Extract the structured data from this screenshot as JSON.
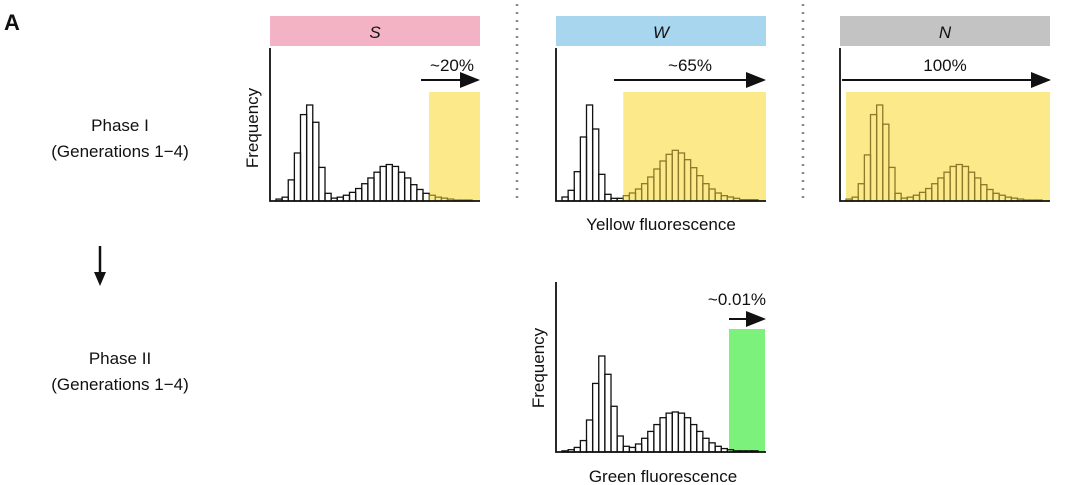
{
  "panel_label": "A",
  "phase1": {
    "title": "Phase I",
    "subtitle": "(Generations 1−4)"
  },
  "phase2": {
    "title": "Phase II",
    "subtitle": "(Generations 1−4)"
  },
  "ylabel": "Frequency",
  "yellow_xlabel": "Yellow fluorescence",
  "green_xlabel": "Green fluorescence",
  "colors": {
    "S": "#f4b3c4",
    "W": "#a9d6ef",
    "N": "#c3c3c3",
    "gate_yellow": "#fbe98a",
    "gate_green": "#7cf27c",
    "bar_in_gate": "#8a7a2a"
  },
  "panels": [
    {
      "id": "S",
      "header": "S",
      "gate_label": "~20%",
      "gate_fraction_label": "~20%",
      "gate_color": "gate_yellow"
    },
    {
      "id": "W",
      "header": "W",
      "gate_label": "~65%",
      "gate_color": "gate_yellow"
    },
    {
      "id": "N",
      "header": "N",
      "gate_label": "100%",
      "gate_color": "gate_yellow"
    },
    {
      "id": "G",
      "header": "",
      "gate_label": "~0.01%",
      "gate_color": "gate_green"
    }
  ],
  "chart_data": [
    {
      "type": "bar",
      "title": "S",
      "ylabel": "Frequency",
      "annotation": "~20%",
      "gate_start_bin": 25,
      "values": [
        2,
        4,
        22,
        50,
        90,
        100,
        82,
        35,
        8,
        3,
        4,
        6,
        9,
        13,
        18,
        24,
        30,
        36,
        38,
        36,
        30,
        24,
        17,
        12,
        8,
        6,
        4,
        3,
        2,
        1,
        1,
        1
      ]
    },
    {
      "type": "bar",
      "title": "W",
      "annotation": "~65%",
      "gate_start_bin": 10,
      "values": [
        3,
        8,
        22,
        48,
        72,
        54,
        20,
        5,
        2,
        2,
        4,
        6,
        9,
        13,
        18,
        24,
        30,
        35,
        38,
        36,
        31,
        25,
        19,
        13,
        9,
        6,
        4,
        3,
        2,
        1,
        1,
        1
      ]
    },
    {
      "type": "bar",
      "title": "N",
      "annotation": "100%",
      "gate_start_bin": 0,
      "values": [
        2,
        4,
        18,
        48,
        90,
        100,
        80,
        35,
        8,
        3,
        4,
        6,
        9,
        13,
        18,
        24,
        30,
        36,
        38,
        36,
        30,
        24,
        17,
        12,
        8,
        6,
        4,
        3,
        2,
        1,
        1,
        1
      ]
    },
    {
      "type": "bar",
      "ylabel": "Frequency",
      "xlabel": "Green fluorescence",
      "annotation": "~0.01%",
      "gate_start_bin": 32,
      "values": [
        1,
        2,
        4,
        10,
        28,
        60,
        84,
        68,
        40,
        14,
        5,
        4,
        7,
        12,
        18,
        24,
        30,
        34,
        35,
        34,
        30,
        24,
        18,
        12,
        8,
        5,
        3,
        2,
        1,
        1,
        1,
        1
      ]
    }
  ]
}
